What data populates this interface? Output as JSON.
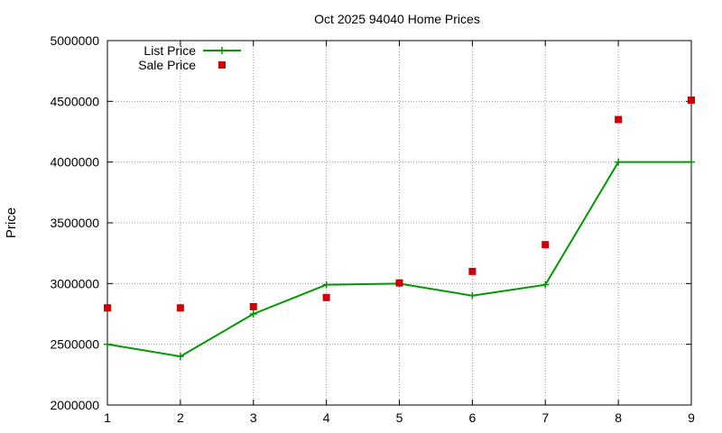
{
  "chart_data": {
    "type": "line",
    "title": "Oct 2025 94040 Home Prices",
    "xlabel": "",
    "ylabel": "Price",
    "x": [
      1,
      2,
      3,
      4,
      5,
      6,
      7,
      8,
      9
    ],
    "xlim": [
      1,
      9
    ],
    "ylim": [
      2000000,
      5000000
    ],
    "yticks": [
      2000000,
      2500000,
      3000000,
      3500000,
      4000000,
      4500000,
      5000000
    ],
    "xticks": [
      1,
      2,
      3,
      4,
      5,
      6,
      7,
      8,
      9
    ],
    "grid": true,
    "legend_position": "top-left",
    "series": [
      {
        "name": "List Price",
        "style": "lines-and-points",
        "marker": "plus",
        "color": "#009900",
        "values": [
          2500000,
          2400000,
          2750000,
          2990000,
          3000000,
          2900000,
          2990000,
          4000000,
          4000000
        ]
      },
      {
        "name": "Sale Price",
        "style": "points",
        "marker": "square",
        "color": "#cc0000",
        "values": [
          2800000,
          2800000,
          2810000,
          2885000,
          3005000,
          3100000,
          3320000,
          4350000,
          4510000
        ]
      }
    ]
  }
}
